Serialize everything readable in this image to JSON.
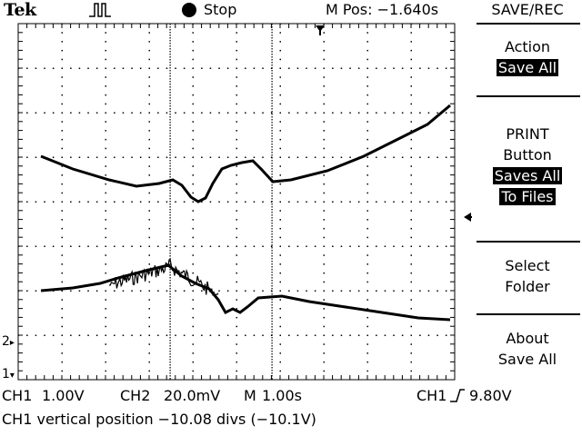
{
  "header": {
    "brand": "Tek",
    "trigger_icon": "pulse-icon",
    "run_state": "Stop",
    "m_pos": "M Pos: −1.640s"
  },
  "menu": {
    "title": "SAVE/REC",
    "action_label": "Action",
    "action_value": "Save All",
    "print_label_1": "PRINT",
    "print_label_2": "Button",
    "print_value_1": "Saves All",
    "print_value_2": "To Files",
    "select_folder_1": "Select",
    "select_folder_2": "Folder",
    "about_1": "About",
    "about_2": "Save All"
  },
  "markers": {
    "ch2": "2",
    "ch1": "1"
  },
  "status": {
    "ch1_label": "CH1",
    "ch1_scale": "1.00V",
    "ch2_label": "CH2",
    "ch2_scale": "20.0mV",
    "time_label": "M",
    "time_scale": "1.00s",
    "trig_source": "CH1",
    "trig_level": "9.80V",
    "message": "CH1 vertical position −10.08 divs (−10.1V)"
  },
  "colors": {
    "trace": "#000000",
    "graticule": "#000000",
    "background": "#ffffff"
  }
}
